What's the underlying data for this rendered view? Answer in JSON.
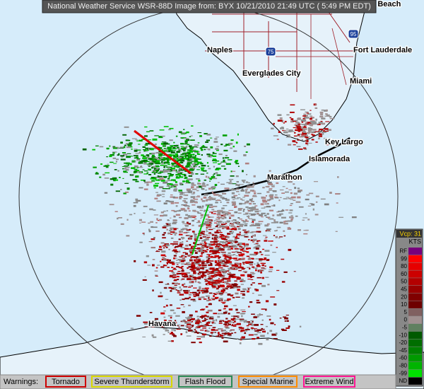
{
  "header": {
    "title": "National Weather Service WSR-88D Image from: BYX 10/21/2010 21:49 UTC ( 5:49 PM EDT)"
  },
  "map": {
    "places": [
      "Palm Beach",
      "Naples",
      "Fort Lauderdale",
      "Everglades City",
      "Miami",
      "Key Largo",
      "Islamorada",
      "Marathon",
      "Havana"
    ],
    "shields": [
      "75",
      "95"
    ]
  },
  "legend": {
    "vcp": "Vcp: 31",
    "units": "KTS",
    "items": [
      {
        "label": "RF",
        "color": "#77007d"
      },
      {
        "label": "99",
        "color": "#ff0000"
      },
      {
        "label": "80",
        "color": "#e60000"
      },
      {
        "label": "60",
        "color": "#cc0000"
      },
      {
        "label": "50",
        "color": "#b30000"
      },
      {
        "label": "45",
        "color": "#990000"
      },
      {
        "label": "20",
        "color": "#800000"
      },
      {
        "label": "10",
        "color": "#6e0000"
      },
      {
        "label": "5",
        "color": "#806060"
      },
      {
        "label": "0",
        "color": "#a09090"
      },
      {
        "label": "-5",
        "color": "#608060"
      },
      {
        "label": "-10",
        "color": "#005a00"
      },
      {
        "label": "-20",
        "color": "#006e00"
      },
      {
        "label": "-45",
        "color": "#008000"
      },
      {
        "label": "-60",
        "color": "#009a00"
      },
      {
        "label": "-80",
        "color": "#00b400"
      },
      {
        "label": "-99",
        "color": "#00e000"
      },
      {
        "label": "ND",
        "color": "#000000"
      }
    ]
  },
  "warnings": {
    "label": "Warnings:",
    "items": [
      {
        "label": "Tornado",
        "color": "#cc0000"
      },
      {
        "label": "Severe Thunderstorm",
        "color": "#d8d800"
      },
      {
        "label": "Flash Flood",
        "color": "#2e8b57"
      },
      {
        "label": "Special Marine",
        "color": "#ff8c00"
      },
      {
        "label": "Extreme Wind",
        "color": "#ff1493"
      }
    ]
  }
}
